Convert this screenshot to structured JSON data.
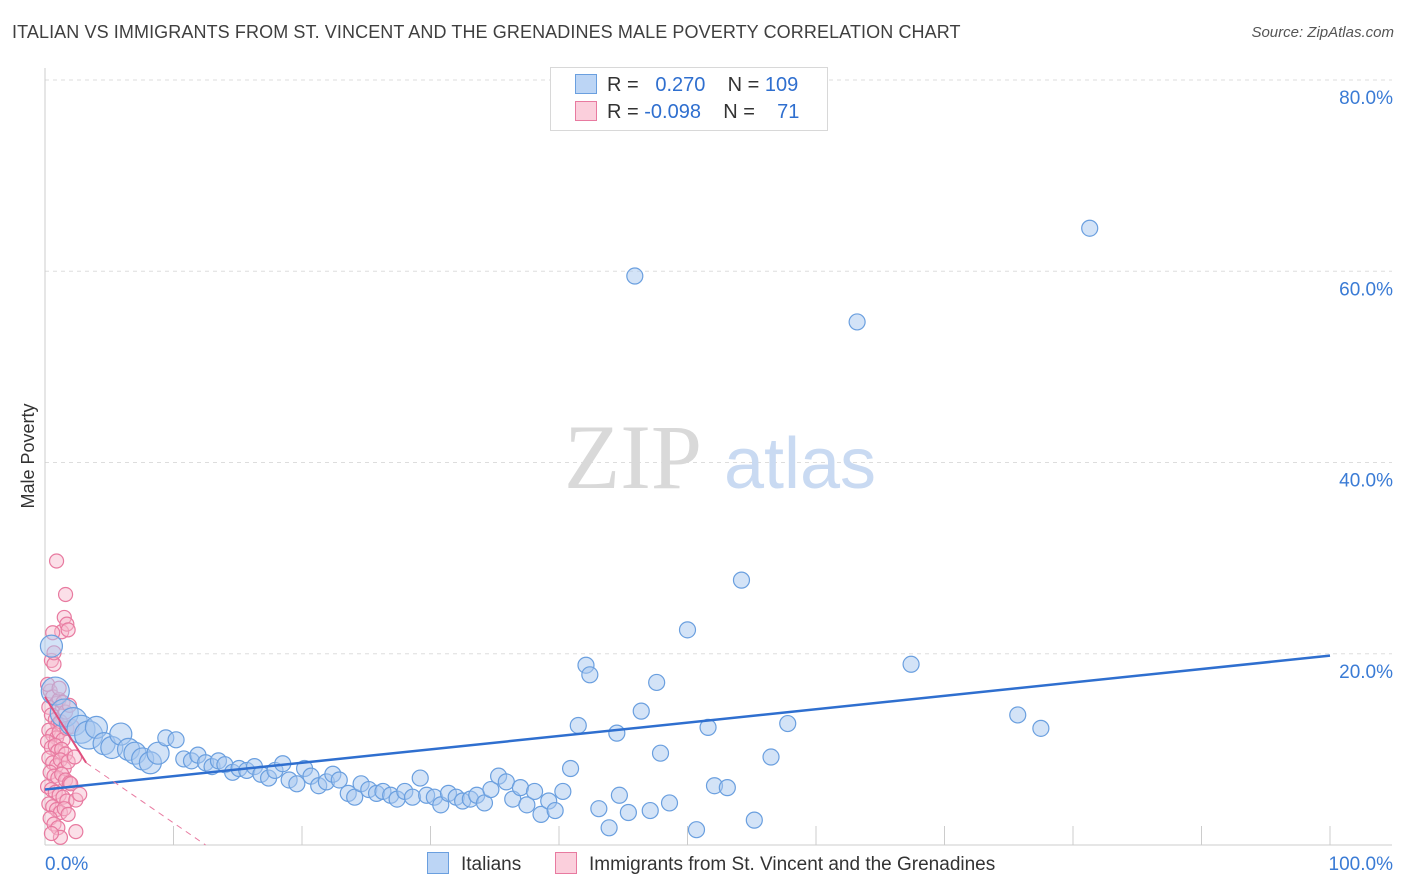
{
  "title": "ITALIAN VS IMMIGRANTS FROM ST. VINCENT AND THE GRENADINES MALE POVERTY CORRELATION CHART",
  "source": "Source: ZipAtlas.com",
  "watermark": {
    "zip": "ZIP",
    "atlas": "atlas"
  },
  "legend": {
    "rows": [
      {
        "r_label": "R =",
        "r_value": "0.270",
        "n_label": "N =",
        "n_value": "109"
      },
      {
        "r_label": "R =",
        "r_value": "-0.098",
        "n_label": "N =",
        "n_value": "71"
      }
    ]
  },
  "colors": {
    "blue_fill": "#a8c8f0",
    "blue_stroke": "#6a9fdf",
    "blue_line": "#2f6fcf",
    "pink_fill": "#f7b8cc",
    "pink_stroke": "#e87aa0",
    "pink_line": "#e0507e",
    "axis_label": "#3a7bd5",
    "grid": "#dddddd"
  },
  "chart_data": {
    "type": "scatter",
    "ylabel": "Male Poverty",
    "xlim": [
      0,
      100
    ],
    "ylim": [
      0,
      80
    ],
    "x_tick_labels": [
      "0.0%",
      "100.0%"
    ],
    "y_ticks": [
      20,
      40,
      60,
      80
    ],
    "y_tick_labels": [
      "20.0%",
      "40.0%",
      "60.0%",
      "80.0%"
    ],
    "grid": true,
    "legend_position": "top-center",
    "series": [
      {
        "name": "Italians",
        "r": 0.27,
        "n": 109,
        "trend": {
          "x": [
            0,
            100
          ],
          "y": [
            5.8,
            19.8
          ]
        },
        "points": [
          [
            0.8,
            16.1,
            3
          ],
          [
            0.5,
            20.8,
            2
          ],
          [
            1.5,
            13.8,
            3
          ],
          [
            2.2,
            12.9,
            3
          ],
          [
            2.8,
            12.1,
            3
          ],
          [
            3.4,
            11.5,
            3
          ],
          [
            4.0,
            12.3,
            2
          ],
          [
            4.6,
            10.6,
            2
          ],
          [
            5.2,
            10.2,
            2
          ],
          [
            5.9,
            11.6,
            2
          ],
          [
            6.5,
            10.0,
            2
          ],
          [
            7.0,
            9.6,
            2
          ],
          [
            7.6,
            9.0,
            2
          ],
          [
            8.2,
            8.6,
            2
          ],
          [
            8.8,
            9.6,
            2
          ],
          [
            9.4,
            11.2,
            1
          ],
          [
            10.2,
            11.0,
            1
          ],
          [
            10.8,
            9.0,
            1
          ],
          [
            11.4,
            8.8,
            1
          ],
          [
            11.9,
            9.4,
            1
          ],
          [
            12.5,
            8.6,
            1
          ],
          [
            13.0,
            8.2,
            1
          ],
          [
            13.5,
            8.8,
            1
          ],
          [
            14.0,
            8.4,
            1
          ],
          [
            14.6,
            7.6,
            1
          ],
          [
            15.1,
            8.0,
            1
          ],
          [
            15.7,
            7.8,
            1
          ],
          [
            16.3,
            8.2,
            1
          ],
          [
            16.8,
            7.4,
            1
          ],
          [
            17.4,
            7.0,
            1
          ],
          [
            17.9,
            7.8,
            1
          ],
          [
            18.5,
            8.5,
            1
          ],
          [
            19.0,
            6.8,
            1
          ],
          [
            19.6,
            6.4,
            1
          ],
          [
            20.2,
            8.0,
            1
          ],
          [
            20.7,
            7.2,
            1
          ],
          [
            21.3,
            6.2,
            1
          ],
          [
            21.9,
            6.6,
            1
          ],
          [
            22.4,
            7.4,
            1
          ],
          [
            22.9,
            6.8,
            1
          ],
          [
            23.6,
            5.4,
            1
          ],
          [
            24.1,
            5.0,
            1
          ],
          [
            24.6,
            6.4,
            1
          ],
          [
            25.2,
            5.8,
            1
          ],
          [
            25.8,
            5.4,
            1
          ],
          [
            26.3,
            5.6,
            1
          ],
          [
            26.9,
            5.2,
            1
          ],
          [
            27.4,
            4.8,
            1
          ],
          [
            28.0,
            5.6,
            1
          ],
          [
            28.6,
            5.0,
            1
          ],
          [
            29.2,
            7.0,
            1
          ],
          [
            29.7,
            5.2,
            1
          ],
          [
            30.3,
            5.0,
            1
          ],
          [
            30.8,
            4.2,
            1
          ],
          [
            31.4,
            5.4,
            1
          ],
          [
            32.0,
            5.0,
            1
          ],
          [
            32.5,
            4.6,
            1
          ],
          [
            33.1,
            4.8,
            1
          ],
          [
            33.6,
            5.2,
            1
          ],
          [
            34.2,
            4.4,
            1
          ],
          [
            34.7,
            5.8,
            1
          ],
          [
            35.3,
            7.2,
            1
          ],
          [
            35.9,
            6.6,
            1
          ],
          [
            36.4,
            4.8,
            1
          ],
          [
            37.0,
            6.0,
            1
          ],
          [
            37.5,
            4.2,
            1
          ],
          [
            38.1,
            5.6,
            1
          ],
          [
            38.6,
            3.2,
            1
          ],
          [
            39.2,
            4.6,
            1
          ],
          [
            39.7,
            3.6,
            1
          ],
          [
            40.3,
            5.6,
            1
          ],
          [
            40.9,
            8.0,
            1
          ],
          [
            41.5,
            12.5,
            1
          ],
          [
            42.1,
            18.8,
            1
          ],
          [
            42.4,
            17.8,
            1
          ],
          [
            43.1,
            3.8,
            1
          ],
          [
            43.9,
            1.8,
            1
          ],
          [
            44.5,
            11.7,
            1
          ],
          [
            44.7,
            5.2,
            1
          ],
          [
            45.4,
            3.4,
            1
          ],
          [
            45.9,
            59.5,
            1
          ],
          [
            46.4,
            14.0,
            1
          ],
          [
            47.1,
            3.6,
            1
          ],
          [
            47.6,
            17.0,
            1
          ],
          [
            47.9,
            9.6,
            1
          ],
          [
            48.6,
            4.4,
            1
          ],
          [
            50.0,
            22.5,
            1
          ],
          [
            50.7,
            1.6,
            1
          ],
          [
            51.6,
            12.3,
            1
          ],
          [
            52.1,
            6.2,
            1
          ],
          [
            53.1,
            6.0,
            1
          ],
          [
            54.2,
            27.7,
            1
          ],
          [
            55.2,
            2.6,
            1
          ],
          [
            56.5,
            9.2,
            1
          ],
          [
            57.8,
            12.7,
            1
          ],
          [
            63.2,
            54.7,
            1
          ],
          [
            67.4,
            18.9,
            1
          ],
          [
            75.7,
            13.6,
            1
          ],
          [
            77.5,
            12.2,
            1
          ],
          [
            81.3,
            64.5,
            1
          ]
        ]
      },
      {
        "name": "Immigrants from St. Vincent and the Grenadines",
        "r": -0.098,
        "n": 71,
        "trend": {
          "x": [
            0,
            3.2
          ],
          "y": [
            15.5,
            8.6
          ],
          "dashed_to": [
            12.5,
            0
          ]
        },
        "points": [
          [
            0.9,
            29.7
          ],
          [
            1.3,
            22.3
          ],
          [
            0.6,
            22.2
          ],
          [
            1.6,
            26.2
          ],
          [
            1.5,
            23.8
          ],
          [
            1.7,
            23.1
          ],
          [
            1.8,
            22.5
          ],
          [
            0.5,
            19.3
          ],
          [
            0.7,
            18.9
          ],
          [
            0.4,
            16.1
          ],
          [
            0.6,
            15.5
          ],
          [
            0.9,
            14.8
          ],
          [
            1.1,
            15.2
          ],
          [
            1.4,
            14.9
          ],
          [
            0.3,
            14.4
          ],
          [
            0.5,
            13.6
          ],
          [
            0.8,
            13.1
          ],
          [
            1.0,
            12.6
          ],
          [
            1.2,
            12.9
          ],
          [
            1.6,
            13.9
          ],
          [
            0.3,
            12.0
          ],
          [
            0.6,
            11.5
          ],
          [
            0.9,
            11.2
          ],
          [
            1.1,
            11.8
          ],
          [
            1.4,
            11.0
          ],
          [
            1.7,
            12.2
          ],
          [
            0.2,
            10.8
          ],
          [
            0.5,
            10.2
          ],
          [
            0.8,
            10.4
          ],
          [
            1.0,
            9.8
          ],
          [
            1.3,
            10.0
          ],
          [
            1.6,
            9.5
          ],
          [
            0.3,
            9.1
          ],
          [
            0.6,
            8.6
          ],
          [
            0.9,
            8.3
          ],
          [
            1.2,
            8.9
          ],
          [
            1.5,
            8.0
          ],
          [
            1.8,
            8.7
          ],
          [
            0.4,
            7.6
          ],
          [
            0.7,
            7.2
          ],
          [
            1.0,
            7.0
          ],
          [
            1.3,
            7.4
          ],
          [
            1.6,
            6.8
          ],
          [
            1.9,
            6.5
          ],
          [
            0.2,
            6.1
          ],
          [
            0.5,
            5.8
          ],
          [
            0.8,
            5.5
          ],
          [
            1.1,
            5.2
          ],
          [
            1.4,
            5.0
          ],
          [
            1.7,
            4.6
          ],
          [
            2.0,
            6.4
          ],
          [
            0.3,
            4.3
          ],
          [
            0.6,
            4.0
          ],
          [
            0.9,
            3.7
          ],
          [
            1.2,
            3.4
          ],
          [
            1.5,
            3.8
          ],
          [
            1.8,
            3.2
          ],
          [
            0.4,
            2.8
          ],
          [
            0.7,
            2.2
          ],
          [
            1.0,
            1.8
          ],
          [
            2.4,
            4.7
          ],
          [
            2.7,
            5.3
          ],
          [
            2.4,
            1.4
          ],
          [
            1.2,
            0.8
          ],
          [
            0.5,
            1.2
          ],
          [
            1.9,
            14.6
          ],
          [
            2.1,
            12.4
          ],
          [
            2.3,
            9.2
          ],
          [
            0.2,
            16.8
          ],
          [
            0.7,
            20.1
          ],
          [
            1.1,
            16.4
          ]
        ]
      }
    ]
  },
  "bottom_legend": {
    "items": [
      "Italians",
      "Immigrants from St. Vincent and the Grenadines"
    ]
  }
}
